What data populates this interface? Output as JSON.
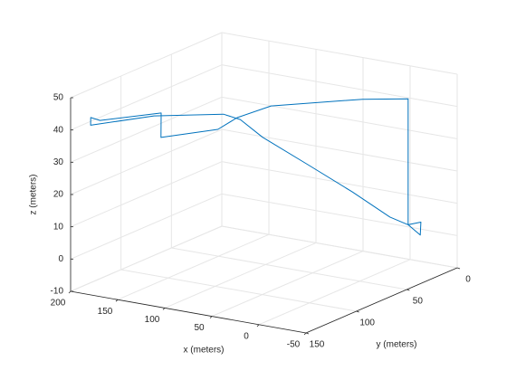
{
  "chart_data": {
    "type": "line3d",
    "xlabel": "x (meters)",
    "ylabel": "y (meters)",
    "zlabel": "z (meters)",
    "xlim": [
      -50,
      200
    ],
    "ylim": [
      0,
      150
    ],
    "zlim": [
      -10,
      50
    ],
    "xticks": [
      -50,
      0,
      50,
      100,
      150,
      200
    ],
    "yticks": [
      0,
      50,
      100,
      150
    ],
    "zticks": [
      -10,
      0,
      10,
      20,
      30,
      40,
      50
    ],
    "x_reversed": true,
    "grid": true,
    "series": [
      {
        "color": "#0072bd",
        "x": [
          -45,
          -44,
          -50,
          -45,
          -45,
          -17,
          46,
          68,
          79,
          119,
          122,
          172,
          184,
          182,
          128,
          73,
          68,
          54,
          17,
          -19,
          -46,
          -45
        ],
        "y": [
          44,
          31,
          36,
          44,
          44,
          63,
          95,
          108,
          117,
          136,
          133,
          147,
          145,
          147,
          134.5,
          117,
          105,
          96,
          85.5,
          75,
          63,
          44
        ],
        "z": [
          9,
          4,
          9,
          9,
          48,
          49,
          48,
          45,
          42,
          40,
          47,
          44,
          44,
          42,
          46,
          47,
          44,
          38,
          30,
          22,
          14,
          9
        ]
      }
    ]
  }
}
